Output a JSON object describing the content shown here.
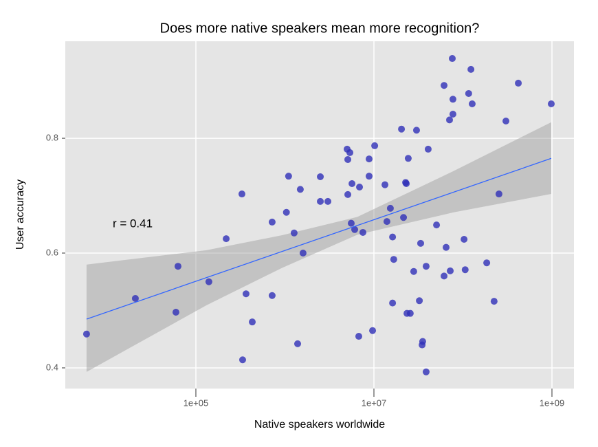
{
  "chart_data": {
    "type": "scatter",
    "title": "Does more native speakers mean more recognition?",
    "x_label": "Native speakers worldwide",
    "y_label": "User accuracy",
    "annotation": "r = 0.41",
    "color": "#3030b8",
    "x": [
      5915,
      20900,
      59700,
      63000,
      140000,
      219000,
      329000,
      335000,
      366000,
      430000,
      719000,
      719000,
      1040000,
      1100000,
      1270000,
      1390000,
      1490000,
      1600000,
      2500000,
      2500000,
      3040000,
      5000000,
      5090000,
      5370000,
      5090000,
      5670000,
      5560000,
      6080000,
      6890000,
      6760000,
      7520000,
      8830000,
      8830000,
      9660000,
      10200000,
      13300000,
      14000000,
      15300000,
      16200000,
      16700000,
      16200000,
      20400000,
      21500000,
      22700000,
      23100000,
      24300000,
      23500000,
      25600000,
      28000000,
      30100000,
      32400000,
      33500000,
      34800000,
      35300000,
      38600000,
      38600000,
      40700000,
      50500000,
      61400000,
      61400000,
      64700000,
      70700000,
      72000000,
      75900000,
      77200000,
      77200000,
      103000000,
      106000000,
      116000000,
      123000000,
      127000000,
      185000000,
      224000000,
      254000000,
      304000000,
      419000000,
      982000000
    ],
    "values": [
      0.459,
      0.521,
      0.497,
      0.577,
      0.55,
      0.625,
      0.703,
      0.414,
      0.529,
      0.48,
      0.654,
      0.526,
      0.671,
      0.734,
      0.635,
      0.442,
      0.711,
      0.6,
      0.733,
      0.69,
      0.69,
      0.781,
      0.763,
      0.775,
      0.702,
      0.721,
      0.652,
      0.641,
      0.715,
      0.455,
      0.636,
      0.764,
      0.734,
      0.465,
      0.787,
      0.719,
      0.655,
      0.678,
      0.628,
      0.589,
      0.513,
      0.816,
      0.662,
      0.723,
      0.721,
      0.765,
      0.495,
      0.495,
      0.568,
      0.814,
      0.517,
      0.617,
      0.44,
      0.446,
      0.577,
      0.393,
      0.781,
      0.649,
      0.892,
      0.56,
      0.61,
      0.832,
      0.569,
      0.939,
      0.868,
      0.842,
      0.624,
      0.571,
      0.878,
      0.92,
      0.86,
      0.583,
      0.516,
      0.703,
      0.83,
      0.896,
      0.86
    ],
    "fit": {
      "color": "#3366ff",
      "x": [
        5915,
        982000000
      ],
      "y": [
        0.485,
        0.765
      ]
    },
    "band": {
      "color": "#999999",
      "x": [
        5915,
        131000,
        923000,
        6530000,
        78700000,
        982000000
      ],
      "upper": [
        0.58,
        0.605,
        0.631,
        0.663,
        0.743,
        0.828
      ],
      "lower": [
        0.393,
        0.509,
        0.574,
        0.632,
        0.671,
        0.703
      ]
    },
    "xscale": "log",
    "xlim": [
      3413,
      1766000000
    ],
    "ylim": [
      0.364,
      0.969
    ],
    "xticks": [
      {
        "value": 100000,
        "label": "1e+05"
      },
      {
        "value": 10000000,
        "label": "1e+07"
      },
      {
        "value": 1000000000,
        "label": "1e+09"
      }
    ],
    "yticks": [
      0.4,
      0.6,
      0.8
    ],
    "grid": true
  }
}
